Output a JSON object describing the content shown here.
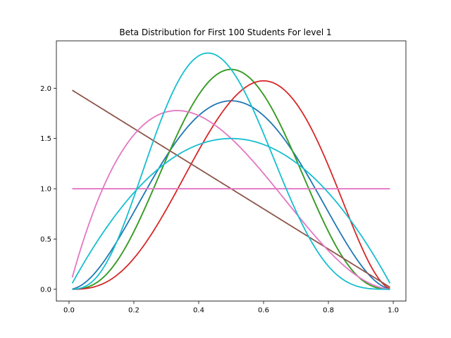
{
  "chart_data": {
    "type": "line",
    "title": "Beta Distribution for First 100 Students For level 1",
    "xlabel": "",
    "ylabel": "",
    "xlim": [
      -0.039,
      1.039
    ],
    "ylim": [
      -0.1177,
      2.4715
    ],
    "x_ticks": [
      0.0,
      0.2,
      0.4,
      0.6,
      0.8,
      1.0
    ],
    "x_tick_labels": [
      "0.0",
      "0.2",
      "0.4",
      "0.6",
      "0.8",
      "1.0"
    ],
    "y_ticks": [
      0.0,
      0.5,
      1.0,
      1.5,
      2.0
    ],
    "y_tick_labels": [
      "0.0",
      "0.5",
      "1.0",
      "1.5",
      "2.0"
    ],
    "grid": false,
    "x_range": [
      0.01,
      0.99
    ],
    "series": [
      {
        "dist": "beta",
        "alpha": 3,
        "beta": 3,
        "color": "#1f77b4"
      },
      {
        "dist": "beta",
        "alpha": 4,
        "beta": 4,
        "color": "#ff7f0e"
      },
      {
        "dist": "beta",
        "alpha": 4,
        "beta": 4,
        "color": "#2ca02c"
      },
      {
        "dist": "beta",
        "alpha": 4,
        "beta": 3,
        "color": "#d62728"
      },
      {
        "dist": "beta",
        "alpha": 1,
        "beta": 2,
        "color": "#8c564b"
      },
      {
        "dist": "beta",
        "alpha": 2,
        "beta": 3,
        "color": "#e377c2"
      },
      {
        "dist": "beta",
        "alpha": 1,
        "beta": 1,
        "color": "#e377c2"
      },
      {
        "dist": "beta",
        "alpha": 2,
        "beta": 2,
        "color": "#17becf"
      },
      {
        "dist": "beta",
        "alpha": 4,
        "beta": 5,
        "color": "#17becf"
      }
    ]
  }
}
